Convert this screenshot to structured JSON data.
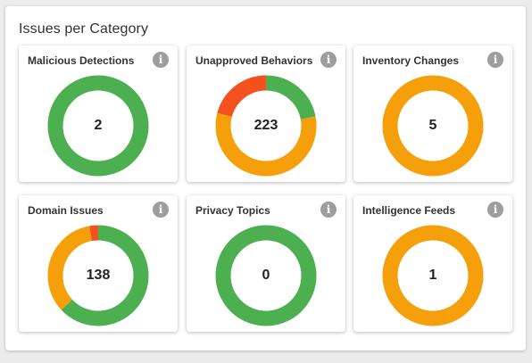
{
  "panel": {
    "title": "Issues per Category"
  },
  "colors": {
    "green": "#4caf50",
    "orange": "#f5a00a",
    "red": "#f4511e",
    "info": "#9e9e9e"
  },
  "cards": [
    {
      "title": "Malicious Detections",
      "value": "2",
      "segments": [
        {
          "color": "#4caf50",
          "fraction": 1.0
        }
      ]
    },
    {
      "title": "Unapproved Behaviors",
      "value": "223",
      "segments": [
        {
          "color": "#4caf50",
          "fraction": 0.22
        },
        {
          "color": "#f5a00a",
          "fraction": 0.57
        },
        {
          "color": "#f4511e",
          "fraction": 0.21
        }
      ]
    },
    {
      "title": "Inventory Changes",
      "value": "5",
      "segments": [
        {
          "color": "#f5a00a",
          "fraction": 1.0
        }
      ]
    },
    {
      "title": "Domain Issues",
      "value": "138",
      "segments": [
        {
          "color": "#4caf50",
          "fraction": 0.63
        },
        {
          "color": "#f5a00a",
          "fraction": 0.34
        },
        {
          "color": "#f4511e",
          "fraction": 0.03
        }
      ]
    },
    {
      "title": "Privacy Topics",
      "value": "0",
      "segments": [
        {
          "color": "#4caf50",
          "fraction": 1.0
        }
      ]
    },
    {
      "title": "Intelligence Feeds",
      "value": "1",
      "segments": [
        {
          "color": "#f5a00a",
          "fraction": 1.0
        }
      ]
    }
  ],
  "info_icon": {
    "glyph": "i",
    "name": "info-icon"
  }
}
